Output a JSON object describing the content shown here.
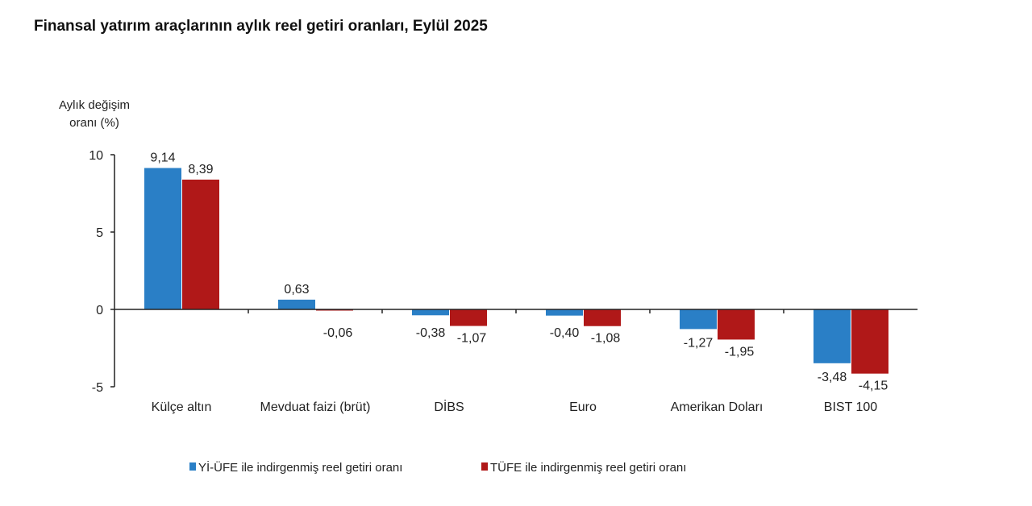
{
  "chart_data": {
    "type": "bar",
    "title": "Finansal yatırım araçlarının aylık reel getiri oranları, Eylül 2025",
    "ylabel": [
      "Aylık değişim",
      "oranı (%)"
    ],
    "xlabel": "",
    "ylim": [
      -5,
      10
    ],
    "yticks": [
      10,
      5,
      0,
      -5
    ],
    "grid": false,
    "legend_position": "bottom",
    "categories": [
      "Külçe altın",
      "Mevduat faizi (brüt)",
      "DİBS",
      "Euro",
      "Amerikan Doları",
      "BIST 100"
    ],
    "series": [
      {
        "name": "Yİ-ÜFE ile indirgenmiş reel getiri oranı",
        "color": "#2a7fc6",
        "values": [
          9.14,
          0.63,
          -0.38,
          -0.4,
          -1.27,
          -3.48
        ],
        "labels": [
          "9,14",
          "0,63",
          "-0,38",
          "-0,40",
          "-1,27",
          "-3,48"
        ]
      },
      {
        "name": "TÜFE ile indirgenmiş reel getiri oranı",
        "color": "#b01818",
        "values": [
          8.39,
          -0.06,
          -1.07,
          -1.08,
          -1.95,
          -4.15
        ],
        "labels": [
          "8,39",
          "-0,06",
          "-1,07",
          "-1,08",
          "-1,95",
          "-4,15"
        ]
      }
    ]
  }
}
